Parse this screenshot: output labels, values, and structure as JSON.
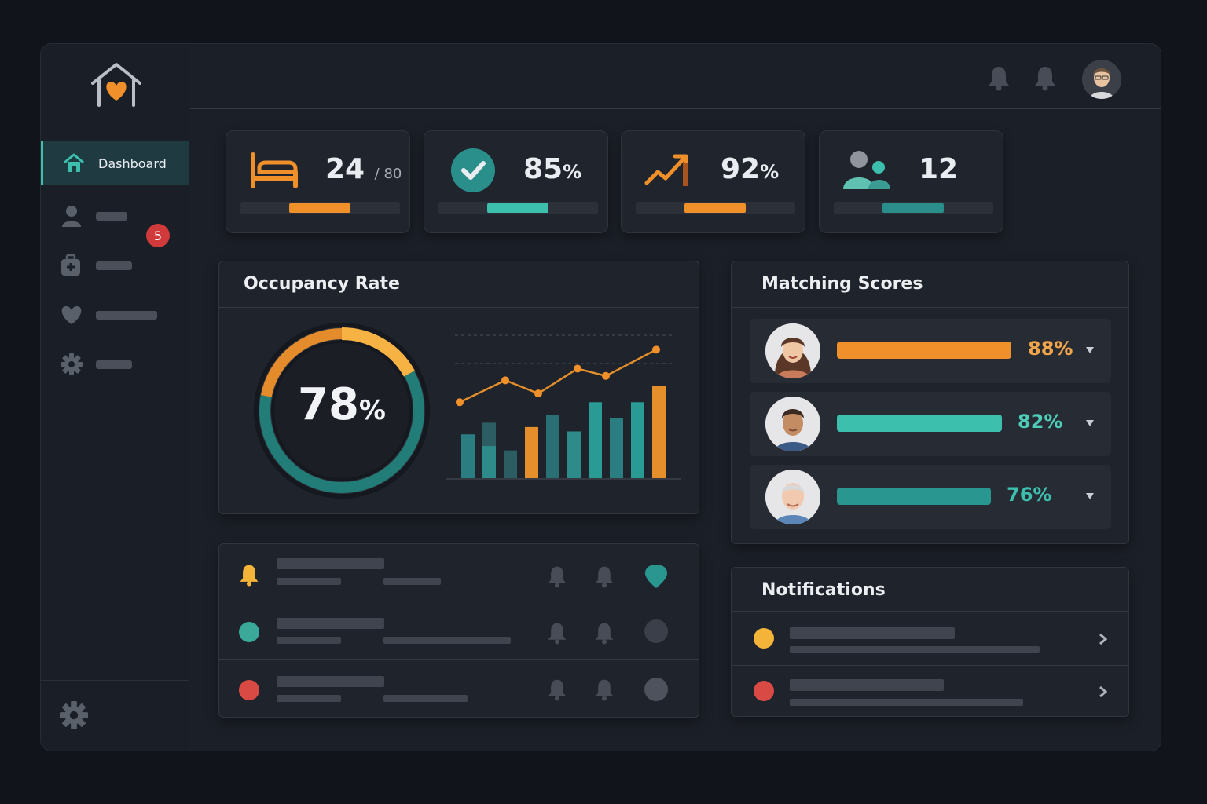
{
  "sidebar": {
    "items": [
      {
        "label": "Dashboard",
        "icon": "home-icon",
        "active": true
      },
      {
        "label": "",
        "icon": "user-icon"
      },
      {
        "label": "",
        "icon": "medical-bag-icon"
      },
      {
        "label": "",
        "icon": "heart-icon"
      },
      {
        "label": "",
        "icon": "gear-icon"
      }
    ],
    "badge": "5",
    "logo": "house-heart-logo"
  },
  "topbar": {
    "icons": [
      "bell-icon",
      "bell-icon"
    ],
    "avatar": "user-avatar"
  },
  "stats": [
    {
      "icon": "bed-icon",
      "value": "24",
      "sub": "/ 80",
      "unit": "",
      "color": "#f0902a",
      "progress": 0.38
    },
    {
      "icon": "check-circle-icon",
      "value": "85",
      "sub": "",
      "unit": "%",
      "color": "#3dbfae",
      "progress": 0.38
    },
    {
      "icon": "trend-up-icon",
      "value": "92",
      "sub": "",
      "unit": "%",
      "color": "#f0902a",
      "progress": 0.38
    },
    {
      "icon": "users-icon",
      "value": "12",
      "sub": "",
      "unit": "",
      "color": "#2a8f8a",
      "progress": 0.38
    }
  ],
  "occupancy": {
    "title": "Occupancy Rate",
    "gauge_value": "78",
    "gauge_unit": "%",
    "gauge_fraction": 0.78
  },
  "chart_data": {
    "type": "bar",
    "title": "",
    "bars": [
      {
        "value": 30,
        "stack": 0,
        "color": "#2a7d80"
      },
      {
        "value": 38,
        "stack": 22,
        "color": "#2b5d63"
      },
      {
        "value": 19,
        "stack": 0,
        "color": "#2b5d63"
      },
      {
        "value": 35,
        "stack": 0,
        "color": "#e48f2c"
      },
      {
        "value": 43,
        "stack": 0,
        "color": "#2a6f74"
      },
      {
        "value": 32,
        "stack": 0,
        "color": "#2d8c8a"
      },
      {
        "value": 52,
        "stack": 0,
        "color": "#2a9b94"
      },
      {
        "value": 41,
        "stack": 0,
        "color": "#2a7d80"
      },
      {
        "value": 52,
        "stack": 0,
        "color": "#2a9b94"
      },
      {
        "value": 63,
        "stack": 0,
        "color": "#e48f2c"
      }
    ],
    "line": [
      {
        "x": 0,
        "y": 52
      },
      {
        "x": 1,
        "y": 67
      },
      {
        "x": 2,
        "y": 58
      },
      {
        "x": 3,
        "y": 75
      },
      {
        "x": 4,
        "y": 70
      },
      {
        "x": 5,
        "y": 88
      }
    ],
    "ylim": [
      0,
      100
    ],
    "grid": true
  },
  "matching": {
    "title": "Matching Scores",
    "rows": [
      {
        "avatar": "woman-avatar",
        "value": "88",
        "unit": "%",
        "score": 0.88,
        "color": "#f0902a",
        "text_color": "#f2a54a"
      },
      {
        "avatar": "man-avatar",
        "value": "82",
        "unit": "%",
        "score": 0.82,
        "color": "#3dbfae",
        "text_color": "#4ecdb9"
      },
      {
        "avatar": "senior-man-avatar",
        "value": "76",
        "unit": "%",
        "score": 0.76,
        "color": "#2a9690",
        "text_color": "#3dbfae"
      }
    ]
  },
  "activity": {
    "rows": [
      {
        "status": "bell-icon",
        "status_color": "#f4b43a",
        "end_color": "#2a9690"
      },
      {
        "status": "teal-dot",
        "status_color": "#3ba99a",
        "end_color": "#3a3f49"
      },
      {
        "status": "red-dot",
        "status_color": "#d94a45",
        "end_color": "#4d525c"
      }
    ]
  },
  "notifications": {
    "title": "Notifications",
    "rows": [
      {
        "color": "#f4b43a"
      },
      {
        "color": "#d94a45"
      }
    ]
  }
}
